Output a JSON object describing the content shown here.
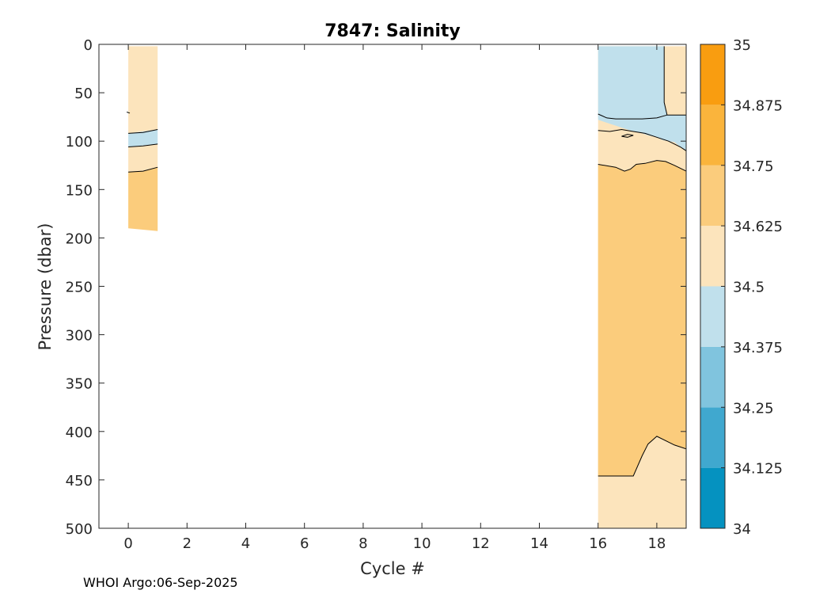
{
  "chart_data": {
    "type": "heatmap",
    "title": "7847:  Salinity",
    "xlabel": "Cycle #",
    "ylabel": "Pressure (dbar)",
    "xlim": [
      -1,
      19
    ],
    "ylim": [
      0,
      500
    ],
    "x_ticks": [
      0,
      2,
      4,
      6,
      8,
      10,
      12,
      14,
      16,
      18
    ],
    "y_ticks": [
      0,
      50,
      100,
      150,
      200,
      250,
      300,
      350,
      400,
      450,
      500
    ],
    "colorbar": {
      "levels": [
        34,
        34.125,
        34.25,
        34.375,
        34.5,
        34.625,
        34.75,
        34.875,
        35
      ],
      "labels": [
        "34",
        "34.125",
        "34.25",
        "34.375",
        "34.5",
        "34.625",
        "34.75",
        "34.875",
        "35"
      ],
      "colors": [
        "#0592c0",
        "#40a8cf",
        "#80c4de",
        "#c0e0ec",
        "#fce4bc",
        "#fbcc7c",
        "#fab43c",
        "#f99d10"
      ]
    },
    "regions": [
      {
        "name": "cycle0-surface",
        "level": "34.5-34.625",
        "color": "#fce4bc",
        "polygon": [
          [
            0,
            2
          ],
          [
            1,
            2
          ],
          [
            1,
            88
          ],
          [
            0,
            92
          ]
        ]
      },
      {
        "name": "cycle0-low",
        "level": "34.375-34.5",
        "color": "#c0e0ec",
        "polygon": [
          [
            0,
            92
          ],
          [
            1,
            88
          ],
          [
            1,
            103
          ],
          [
            0,
            106
          ]
        ]
      },
      {
        "name": "cycle0-mid",
        "level": "34.5-34.625",
        "color": "#fce4bc",
        "polygon": [
          [
            0,
            106
          ],
          [
            1,
            103
          ],
          [
            1,
            127
          ],
          [
            0.5,
            131
          ],
          [
            0,
            132
          ]
        ]
      },
      {
        "name": "cycle0-deep",
        "level": "34.625-34.75",
        "color": "#fbcc7c",
        "polygon": [
          [
            0,
            132
          ],
          [
            0.5,
            131
          ],
          [
            1,
            127
          ],
          [
            1,
            193
          ],
          [
            0,
            190
          ]
        ]
      },
      {
        "name": "cycles16-19-base",
        "level": "34.5-34.625",
        "color": "#fce4bc",
        "polygon": [
          [
            16,
            2
          ],
          [
            19,
            2
          ],
          [
            19,
            500
          ],
          [
            16,
            500
          ]
        ]
      },
      {
        "name": "cycles16-19-surface-low",
        "level": "34.375-34.5",
        "color": "#c0e0ec",
        "polygon": [
          [
            16,
            2
          ],
          [
            18.25,
            2
          ],
          [
            18.25,
            60
          ],
          [
            18.35,
            73
          ],
          [
            19,
            73
          ],
          [
            19,
            110
          ],
          [
            18.8,
            106
          ],
          [
            18.6,
            101
          ],
          [
            18.2,
            99
          ],
          [
            18,
            96
          ],
          [
            17.7,
            94
          ],
          [
            17.5,
            92
          ],
          [
            17.2,
            90
          ],
          [
            17,
            88
          ],
          [
            16.8,
            86
          ],
          [
            16.6,
            84
          ],
          [
            16.4,
            82
          ],
          [
            16,
            78
          ]
        ]
      },
      {
        "name": "cycles16-19-deep",
        "level": "34.625-34.75",
        "color": "#fbcc7c",
        "polygon": [
          [
            16,
            124
          ],
          [
            16.6,
            127
          ],
          [
            16.9,
            131
          ],
          [
            17.1,
            129
          ],
          [
            17.3,
            124
          ],
          [
            17.6,
            123
          ],
          [
            18,
            120
          ],
          [
            18.3,
            121
          ],
          [
            18.6,
            125
          ],
          [
            19,
            131
          ],
          [
            19,
            418
          ],
          [
            18.6,
            414
          ],
          [
            18,
            405
          ],
          [
            17.7,
            413
          ],
          [
            17.5,
            425
          ],
          [
            17.2,
            446
          ],
          [
            16,
            446
          ]
        ]
      }
    ],
    "contours": [
      {
        "polyline": [
          [
            0,
            92
          ],
          [
            0.5,
            91
          ],
          [
            1,
            88
          ]
        ]
      },
      {
        "polyline": [
          [
            0,
            106
          ],
          [
            0.5,
            105
          ],
          [
            1,
            103
          ]
        ]
      },
      {
        "polyline": [
          [
            0,
            132
          ],
          [
            0.5,
            131
          ],
          [
            1,
            127
          ]
        ]
      },
      {
        "polyline": [
          [
            -0.05,
            70
          ],
          [
            0.05,
            71
          ]
        ]
      },
      {
        "polyline": [
          [
            16,
            72
          ],
          [
            16.3,
            76
          ],
          [
            16.6,
            77
          ],
          [
            17,
            77
          ],
          [
            17.5,
            77
          ],
          [
            18,
            76
          ],
          [
            18.35,
            73
          ],
          [
            19,
            73
          ]
        ]
      },
      {
        "polyline": [
          [
            18.25,
            2
          ],
          [
            18.25,
            60
          ],
          [
            18.35,
            73
          ]
        ]
      },
      {
        "polyline": [
          [
            16,
            89
          ],
          [
            16.4,
            90
          ],
          [
            16.8,
            88
          ],
          [
            17.2,
            90
          ],
          [
            17.6,
            92
          ],
          [
            18,
            96
          ],
          [
            18.4,
            100
          ],
          [
            18.8,
            106
          ],
          [
            19,
            110
          ]
        ]
      },
      {
        "polyline": [
          [
            16.8,
            95
          ],
          [
            17,
            93
          ],
          [
            17.2,
            94
          ],
          [
            17,
            96
          ],
          [
            16.8,
            95
          ]
        ]
      },
      {
        "polyline": [
          [
            16,
            124
          ],
          [
            16.6,
            127
          ],
          [
            16.9,
            131
          ],
          [
            17.1,
            129
          ],
          [
            17.3,
            124
          ],
          [
            17.6,
            123
          ],
          [
            18,
            120
          ],
          [
            18.3,
            121
          ],
          [
            18.6,
            125
          ],
          [
            19,
            131
          ]
        ]
      },
      {
        "polyline": [
          [
            16,
            446
          ],
          [
            17.2,
            446
          ],
          [
            17.5,
            425
          ],
          [
            17.7,
            413
          ],
          [
            18,
            405
          ],
          [
            18.6,
            414
          ],
          [
            19,
            418
          ]
        ]
      }
    ]
  },
  "footer": "WHOI Argo:06-Sep-2025"
}
